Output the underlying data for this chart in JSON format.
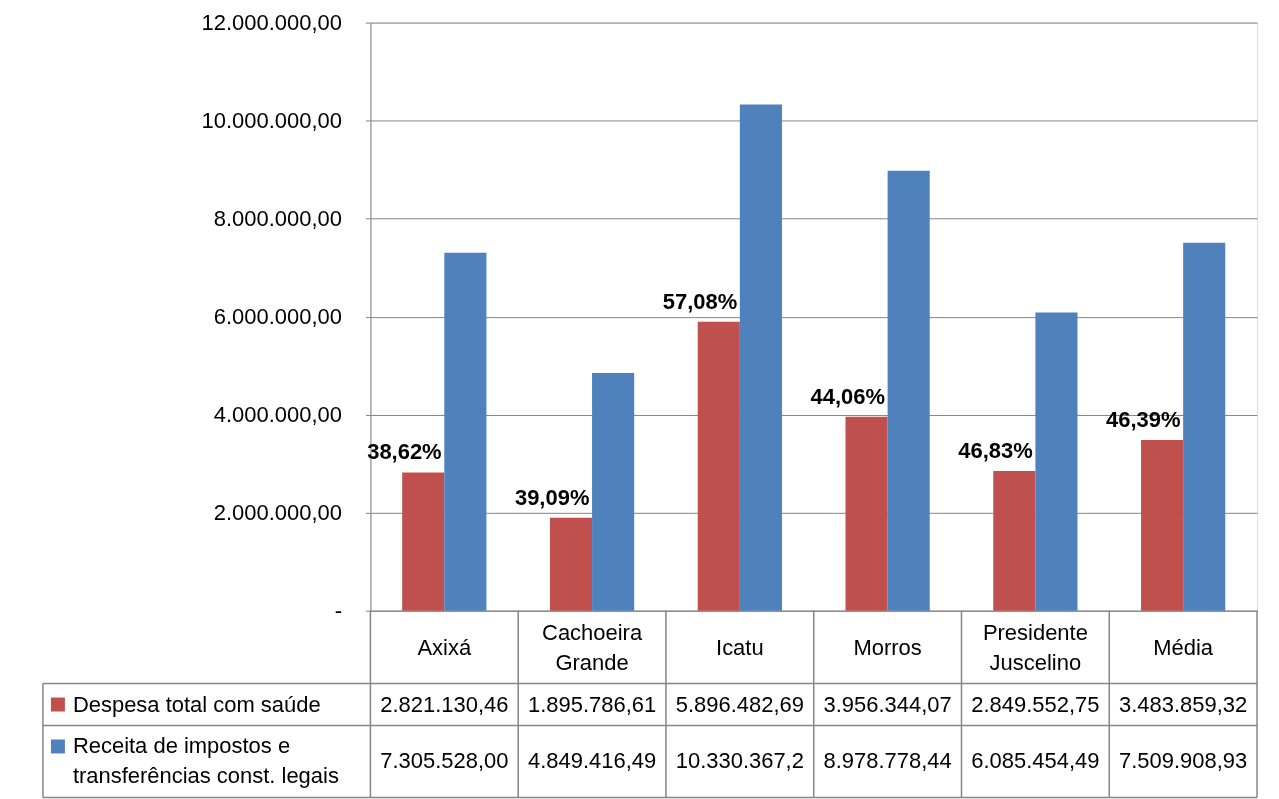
{
  "chart_data": {
    "type": "bar",
    "categories": [
      "Axixá",
      "Cachoeira Grande",
      "Icatu",
      "Morros",
      "Presidente Juscelino",
      "Média"
    ],
    "series": [
      {
        "name": "Despesa total com saúde",
        "color": "#c0504d",
        "values": [
          2821130.46,
          1895786.61,
          5896482.69,
          3956344.07,
          2849552.75,
          3483859.32
        ],
        "value_labels": [
          "2.821.130,46",
          "1.895.786,61",
          "5.896.482,69",
          "3.956.344,07",
          "2.849.552,75",
          "3.483.859,32"
        ]
      },
      {
        "name": "Receita de impostos e transferências const. legais",
        "color": "#4f81bd",
        "values": [
          7305528.0,
          4849416.49,
          10330367.2,
          8978778.44,
          6085454.49,
          7509908.93
        ],
        "value_labels": [
          "7.305.528,00",
          "4.849.416,49",
          "10.330.367,2",
          "8.978.778,44",
          "6.085.454,49",
          "7.509.908,93"
        ]
      }
    ],
    "ylim": [
      0,
      12000000
    ],
    "yticks": [
      {
        "value": 0,
        "label": "-"
      },
      {
        "value": 2000000,
        "label": "2.000.000,00"
      },
      {
        "value": 4000000,
        "label": "4.000.000,00"
      },
      {
        "value": 6000000,
        "label": "6.000.000,00"
      },
      {
        "value": 8000000,
        "label": "8.000.000,00"
      },
      {
        "value": 10000000,
        "label": "10.000.000,00"
      },
      {
        "value": 12000000,
        "label": "12.000.000,00"
      }
    ],
    "annotations": [
      {
        "text": "38,62%",
        "x": "Axixá",
        "y": 2821130.46
      },
      {
        "text": "39,09%",
        "x": "Cachoeira Grande",
        "y": 1895786.61
      },
      {
        "text": "57,08%",
        "x": "Icatu",
        "y": 5896482.69
      },
      {
        "text": "44,06%",
        "x": "Morros",
        "y": 3956344.07
      },
      {
        "text": "46,83%",
        "x": "Presidente Juscelino",
        "y": 2849552.75
      },
      {
        "text": "46,39%",
        "x": "Média",
        "y": 3483859.32
      }
    ],
    "grid": "y",
    "legend": "bottom left"
  }
}
